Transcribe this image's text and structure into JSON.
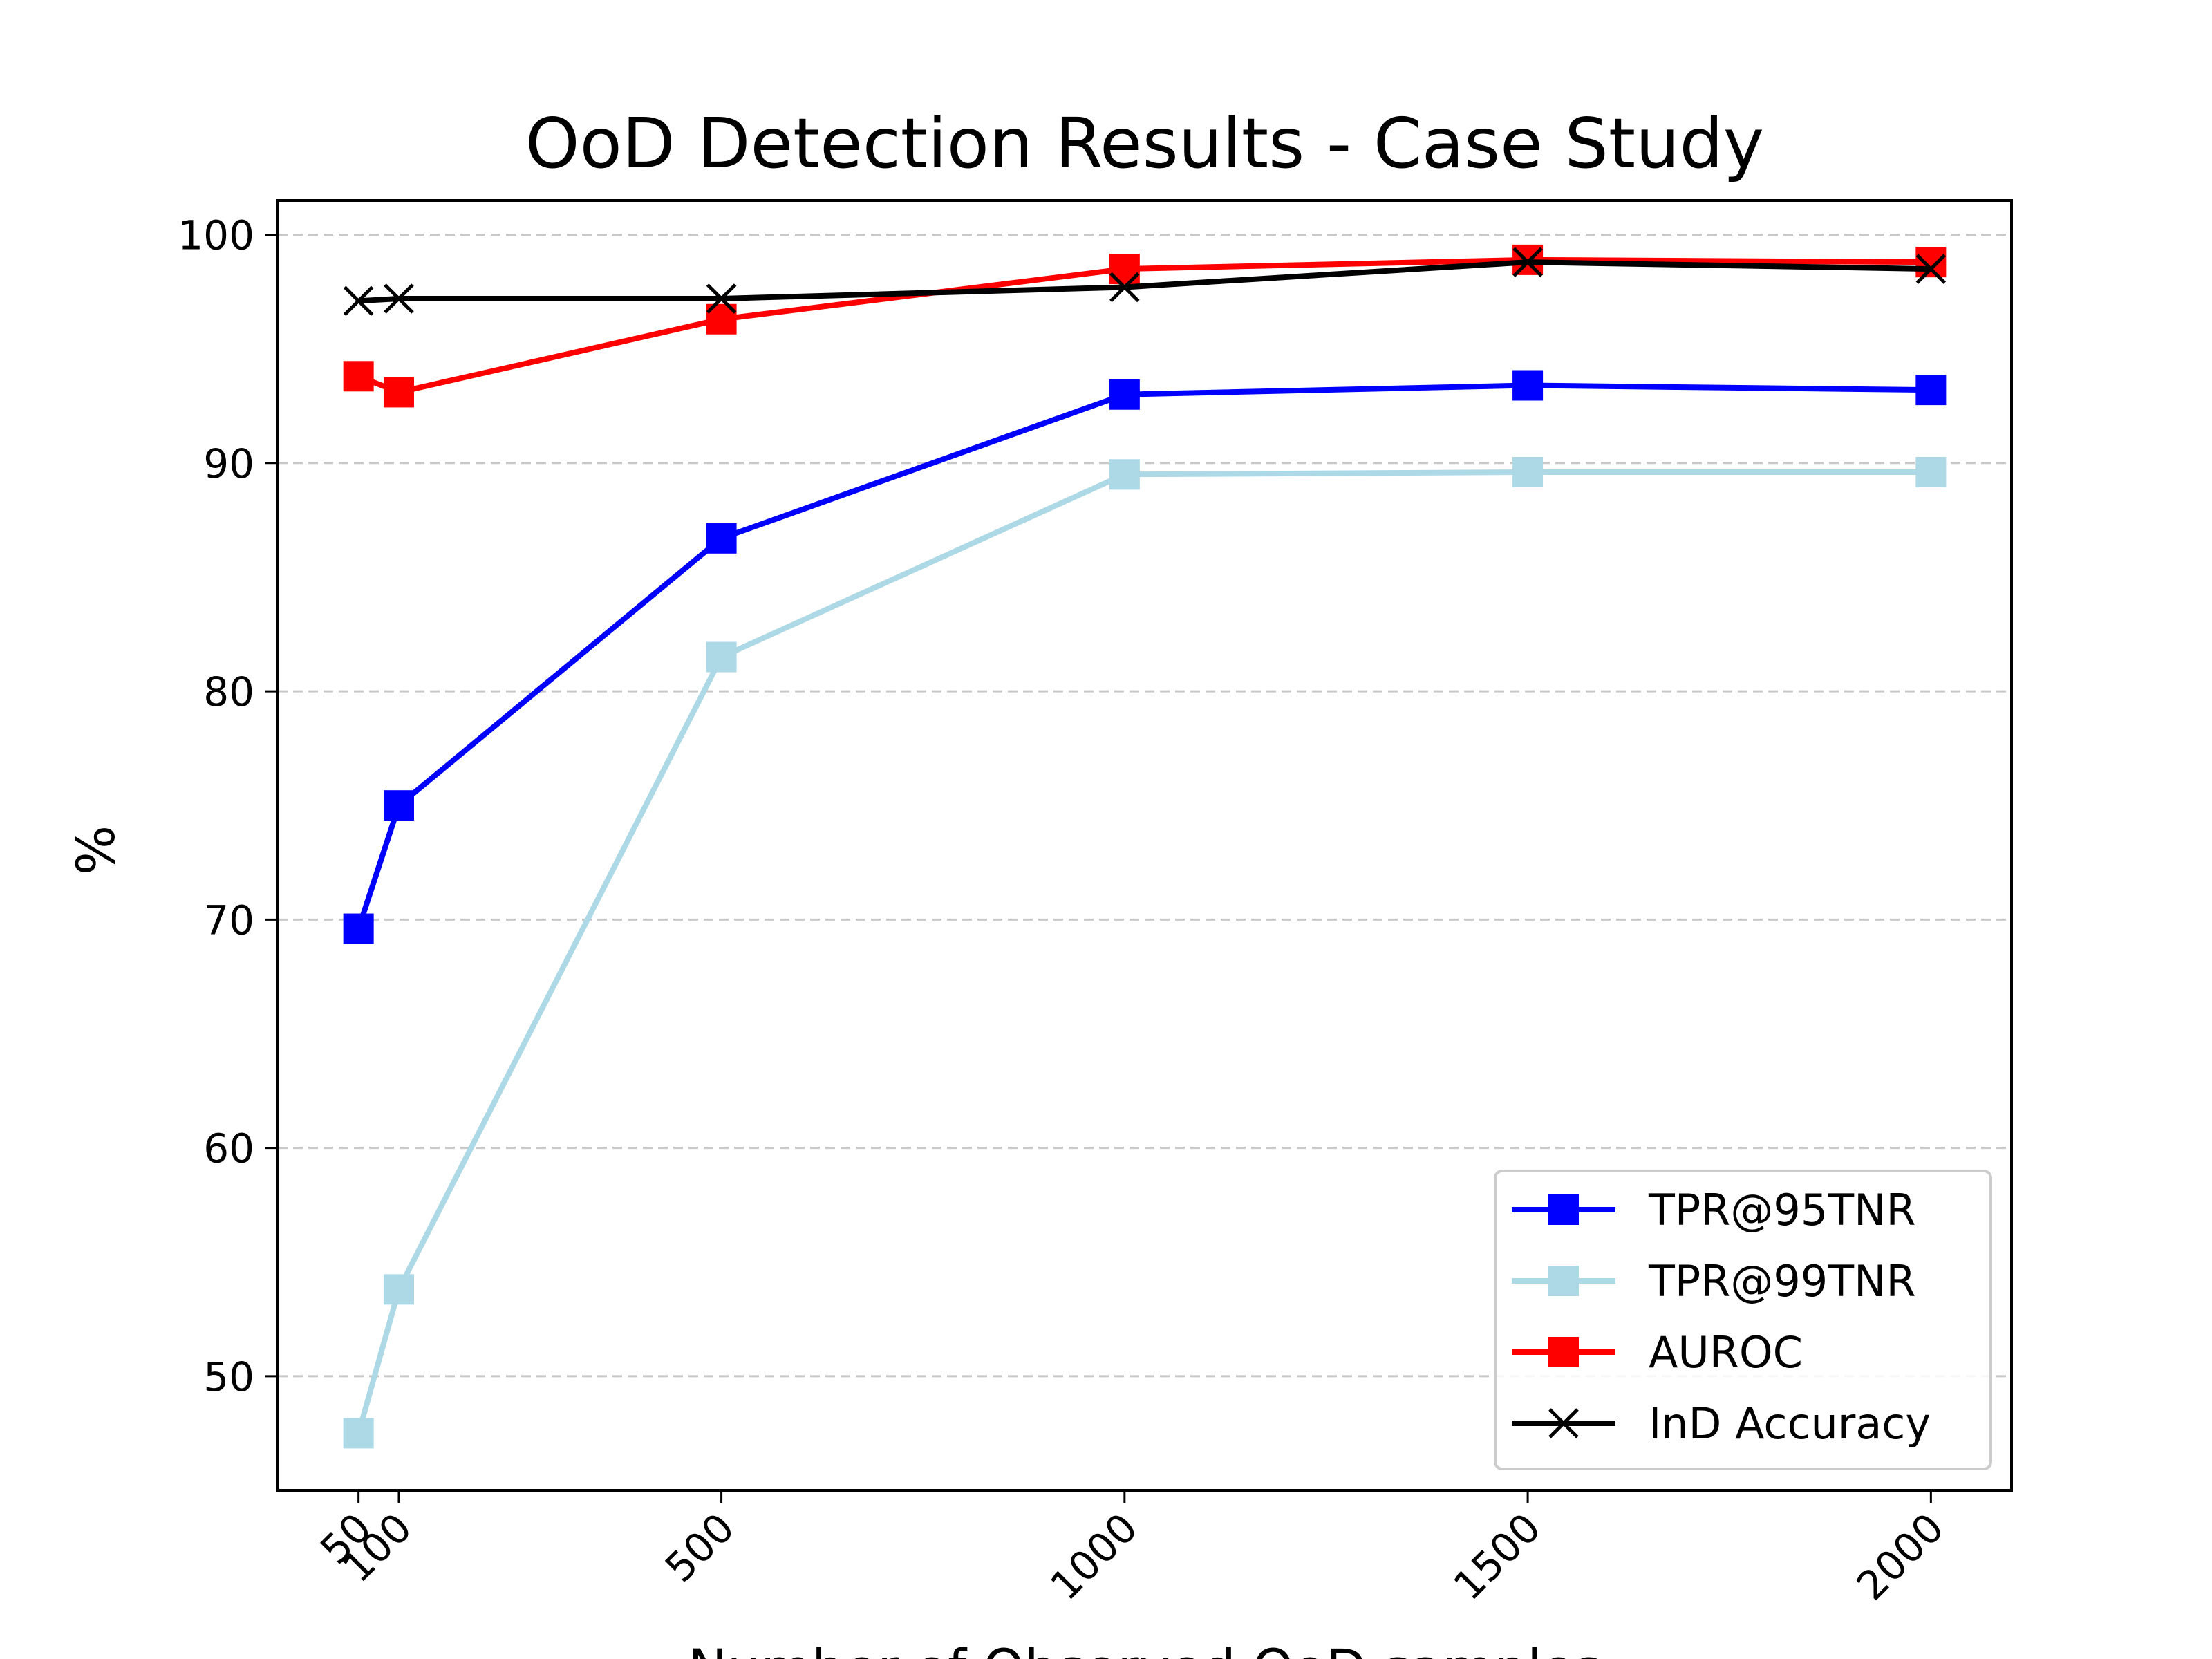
{
  "chart_data": {
    "type": "line",
    "title": "OoD Detection Results - Case Study",
    "xlabel": "Number of Observed OoD samples",
    "ylabel": "%",
    "x": [
      50,
      100,
      500,
      1000,
      1500,
      2000
    ],
    "x_tick_labels": [
      "50",
      "100",
      "500",
      "1000",
      "1500",
      "2000"
    ],
    "y_ticks": [
      50,
      60,
      70,
      80,
      90,
      100
    ],
    "y_tick_labels": [
      "50",
      "60",
      "70",
      "80",
      "90",
      "100"
    ],
    "xlim": [
      -50,
      2100
    ],
    "ylim": [
      45,
      101.5
    ],
    "grid": "horizontal dashed",
    "legend_position": "lower right",
    "series": [
      {
        "name": "TPR@95TNR",
        "color": "#0000ff",
        "marker": "square",
        "values": [
          69.6,
          75.0,
          86.7,
          93.0,
          93.4,
          93.2
        ]
      },
      {
        "name": "TPR@99TNR",
        "color": "#add8e6",
        "marker": "square",
        "values": [
          47.5,
          53.8,
          81.5,
          89.5,
          89.6,
          89.6
        ]
      },
      {
        "name": "AUROC",
        "color": "#ff0000",
        "marker": "square",
        "values": [
          93.8,
          93.1,
          96.3,
          98.5,
          98.9,
          98.8
        ]
      },
      {
        "name": "InD Accuracy",
        "color": "#000000",
        "marker": "x",
        "values": [
          97.1,
          97.2,
          97.2,
          97.7,
          98.8,
          98.5
        ]
      }
    ]
  }
}
